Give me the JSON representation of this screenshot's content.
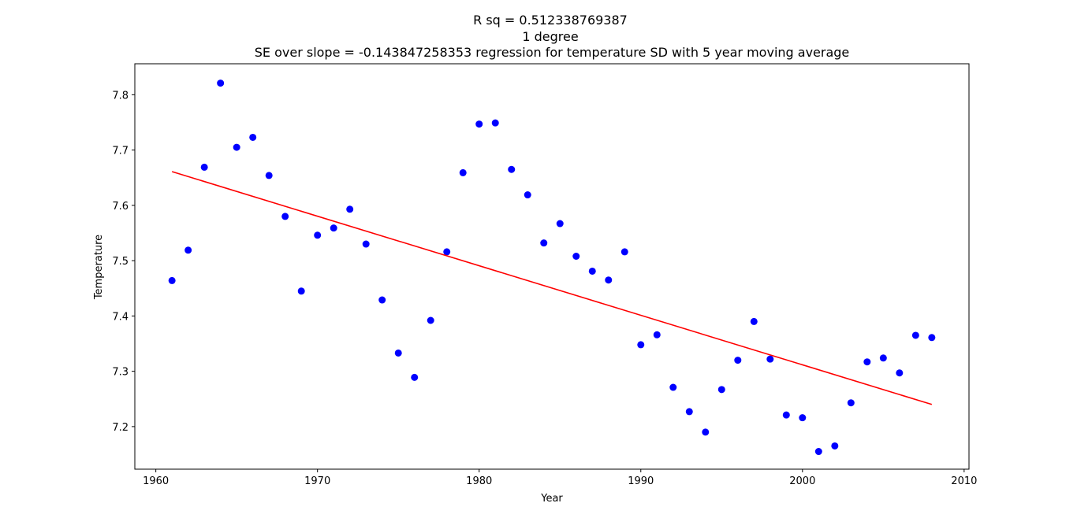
{
  "chart_data": {
    "type": "scatter",
    "title_lines": [
      "R sq = 0.512338769387",
      "1 degree",
      "SE over slope = -0.143847258353 regression for temperature SD with 5 year moving average"
    ],
    "xlabel": "Year",
    "ylabel": "Temperature",
    "xlim": [
      1958.7,
      2010.3
    ],
    "ylim": [
      7.123,
      7.856
    ],
    "xticks": [
      1960,
      1970,
      1980,
      1990,
      2000,
      2010
    ],
    "yticks": [
      7.2,
      7.3,
      7.4,
      7.5,
      7.6,
      7.7,
      7.8
    ],
    "grid": false,
    "series": [
      {
        "kind": "scatter",
        "color": "#0000ff",
        "x": [
          1961,
          1962,
          1963,
          1964,
          1965,
          1966,
          1967,
          1968,
          1969,
          1970,
          1971,
          1972,
          1973,
          1974,
          1975,
          1976,
          1977,
          1978,
          1979,
          1980,
          1981,
          1982,
          1983,
          1984,
          1985,
          1986,
          1987,
          1988,
          1989,
          1990,
          1991,
          1992,
          1993,
          1994,
          1995,
          1996,
          1997,
          1998,
          1999,
          2000,
          2001,
          2002,
          2003,
          2004,
          2005,
          2006,
          2007,
          2008
        ],
        "y": [
          7.464,
          7.519,
          7.669,
          7.821,
          7.705,
          7.723,
          7.654,
          7.58,
          7.445,
          7.546,
          7.559,
          7.593,
          7.53,
          7.429,
          7.333,
          7.289,
          7.392,
          7.516,
          7.659,
          7.747,
          7.749,
          7.665,
          7.619,
          7.532,
          7.567,
          7.508,
          7.481,
          7.465,
          7.516,
          7.348,
          7.366,
          7.271,
          7.227,
          7.19,
          7.267,
          7.32,
          7.39,
          7.322,
          7.221,
          7.216,
          7.155,
          7.165,
          7.243,
          7.317,
          7.324,
          7.297,
          7.365,
          7.361
        ]
      },
      {
        "kind": "line",
        "color": "#ff0000",
        "x": [
          1961,
          2008
        ],
        "y": [
          7.661,
          7.24
        ]
      }
    ]
  }
}
